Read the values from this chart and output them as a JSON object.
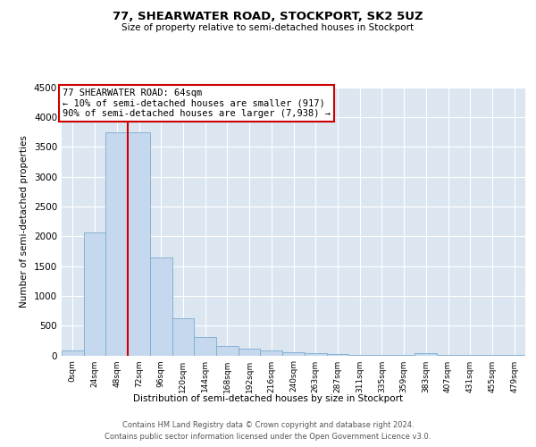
{
  "title": "77, SHEARWATER ROAD, STOCKPORT, SK2 5UZ",
  "subtitle": "Size of property relative to semi-detached houses in Stockport",
  "xlabel": "Distribution of semi-detached houses by size in Stockport",
  "ylabel": "Number of semi-detached properties",
  "bar_labels": [
    "0sqm",
    "24sqm",
    "48sqm",
    "72sqm",
    "96sqm",
    "120sqm",
    "144sqm",
    "168sqm",
    "192sqm",
    "216sqm",
    "240sqm",
    "263sqm",
    "287sqm",
    "311sqm",
    "335sqm",
    "359sqm",
    "383sqm",
    "407sqm",
    "431sqm",
    "455sqm",
    "479sqm"
  ],
  "bar_values": [
    80,
    2060,
    3750,
    3750,
    1640,
    630,
    310,
    160,
    110,
    80,
    55,
    40,
    25,
    15,
    10,
    5,
    35,
    5,
    3,
    2,
    1
  ],
  "bar_color": "#c5d8ee",
  "bar_edge_color": "#7aabcf",
  "vline_color": "#cc0000",
  "vline_pos": 2.5,
  "annotation_text": "77 SHEARWATER ROAD: 64sqm\n← 10% of semi-detached houses are smaller (917)\n90% of semi-detached houses are larger (7,938) →",
  "annotation_box_color": "#cc0000",
  "ylim": [
    0,
    4500
  ],
  "yticks": [
    0,
    500,
    1000,
    1500,
    2000,
    2500,
    3000,
    3500,
    4000,
    4500
  ],
  "plot_bg_color": "#dce6f1",
  "grid_color": "#ffffff",
  "footer_line1": "Contains HM Land Registry data © Crown copyright and database right 2024.",
  "footer_line2": "Contains public sector information licensed under the Open Government Licence v3.0."
}
